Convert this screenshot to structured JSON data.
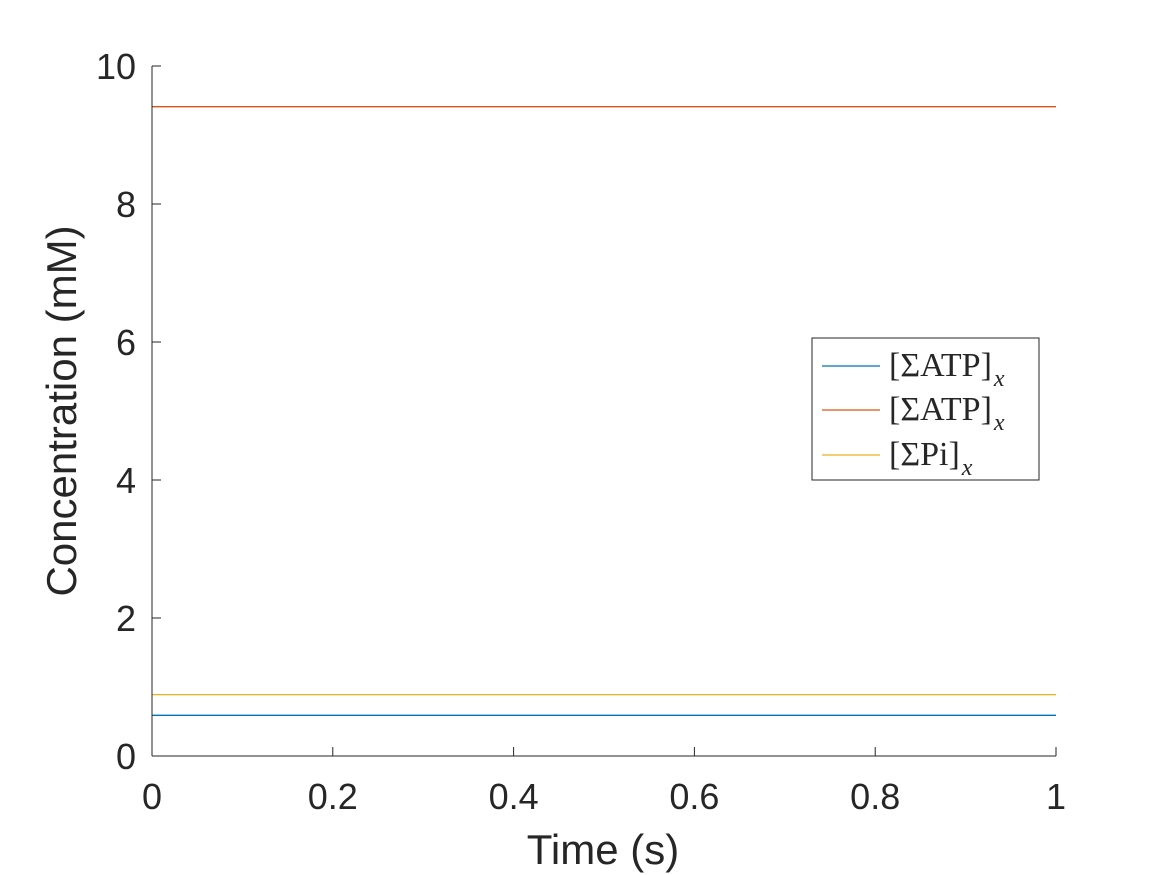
{
  "chart_data": {
    "type": "line",
    "xlabel": "Time (s)",
    "ylabel": "Concentration (mM)",
    "xlim": [
      0,
      1
    ],
    "ylim": [
      0,
      10
    ],
    "xticks": [
      0,
      0.2,
      0.4,
      0.6,
      0.8,
      1
    ],
    "xtick_labels": [
      "0",
      "0.2",
      "0.4",
      "0.6",
      "0.8",
      "1"
    ],
    "yticks": [
      0,
      2,
      4,
      6,
      8,
      10
    ],
    "ytick_labels": [
      "0",
      "2",
      "4",
      "6",
      "8",
      "10"
    ],
    "grid": false,
    "legend_position": "right",
    "series": [
      {
        "name": "[ΣATP]",
        "subscript": "x",
        "color": "#0072BD",
        "x": [
          0,
          1
        ],
        "y": [
          0.59,
          0.59
        ]
      },
      {
        "name": "[ΣATP]",
        "subscript": "x",
        "color": "#D95319",
        "x": [
          0,
          1
        ],
        "y": [
          9.41,
          9.41
        ]
      },
      {
        "name": "[ΣPi]",
        "subscript": "x",
        "color": "#EDB120",
        "x": [
          0,
          1
        ],
        "y": [
          0.89,
          0.89
        ]
      }
    ]
  }
}
